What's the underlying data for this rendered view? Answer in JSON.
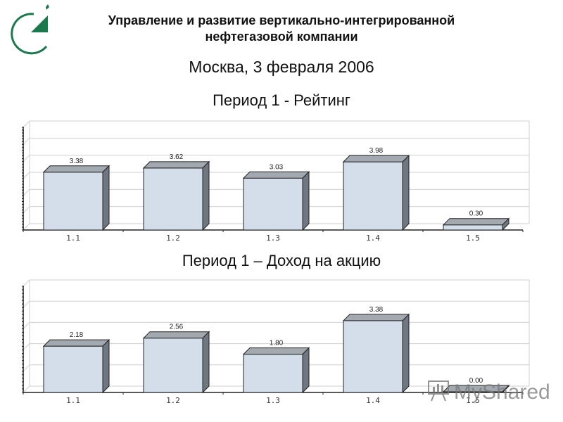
{
  "header": {
    "title": "Управление и развитие вертикально-интегрированной нефтегазовой компании",
    "subtitle": "Москва, 3 февраля 2006"
  },
  "logo": {
    "icon": "company-logo-icon",
    "color": "#1a7a4c"
  },
  "watermark": {
    "text": "MyShared",
    "icon": "presentation-board-icon"
  },
  "colors": {
    "bar_front": "#d3deea",
    "bar_top": "#a3a9b0",
    "bar_side": "#6f7780",
    "grid": "#cfcfcf"
  },
  "chart_data": [
    {
      "type": "bar",
      "title": "Период 1 - Рейтинг",
      "categories": [
        "1.1",
        "1.2",
        "1.3",
        "1.4",
        "1.5"
      ],
      "values": [
        3.38,
        3.62,
        3.03,
        3.98,
        0.3
      ],
      "value_labels": [
        "3.38",
        "3.62",
        "3.03",
        "3.98",
        "0.30"
      ],
      "xlabel": "",
      "ylabel": "",
      "ylim": [
        0,
        6
      ],
      "grid": true,
      "style": "3d"
    },
    {
      "type": "bar",
      "title": "Период 1 – Доход на акцию",
      "categories": [
        "1.1",
        "1.2",
        "1.3",
        "1.4",
        "1.5"
      ],
      "values": [
        2.18,
        2.56,
        1.8,
        3.38,
        0.0
      ],
      "value_labels": [
        "2.18",
        "2.56",
        "1.80",
        "3.38",
        "0.00"
      ],
      "xlabel": "",
      "ylabel": "",
      "ylim": [
        0,
        5
      ],
      "grid": true,
      "style": "3d"
    }
  ]
}
